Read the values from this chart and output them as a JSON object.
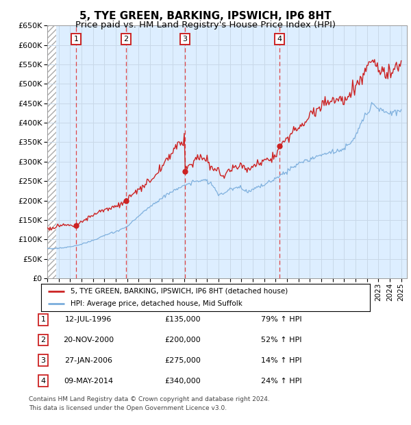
{
  "title": "5, TYE GREEN, BARKING, IPSWICH, IP6 8HT",
  "subtitle": "Price paid vs. HM Land Registry's House Price Index (HPI)",
  "legend_line1": "5, TYE GREEN, BARKING, IPSWICH, IP6 8HT (detached house)",
  "legend_line2": "HPI: Average price, detached house, Mid Suffolk",
  "footer1": "Contains HM Land Registry data © Crown copyright and database right 2024.",
  "footer2": "This data is licensed under the Open Government Licence v3.0.",
  "ylim": [
    0,
    650000
  ],
  "yticks": [
    0,
    50000,
    100000,
    150000,
    200000,
    250000,
    300000,
    350000,
    400000,
    450000,
    500000,
    550000,
    600000,
    650000
  ],
  "ytick_labels": [
    "£0",
    "£50K",
    "£100K",
    "£150K",
    "£200K",
    "£250K",
    "£300K",
    "£350K",
    "£400K",
    "£450K",
    "£500K",
    "£550K",
    "£600K",
    "£650K"
  ],
  "xlim_start": 1994.0,
  "xlim_end": 2025.5,
  "purchases": [
    {
      "num": 1,
      "date_decimal": 1996.53,
      "price": 135000,
      "date_str": "12-JUL-1996",
      "price_str": "£135,000",
      "pct_str": "79% ↑ HPI"
    },
    {
      "num": 2,
      "date_decimal": 2000.89,
      "price": 200000,
      "date_str": "20-NOV-2000",
      "price_str": "£200,000",
      "pct_str": "52% ↑ HPI"
    },
    {
      "num": 3,
      "date_decimal": 2006.07,
      "price": 275000,
      "date_str": "27-JAN-2006",
      "price_str": "£275,000",
      "pct_str": "14% ↑ HPI"
    },
    {
      "num": 4,
      "date_decimal": 2014.35,
      "price": 340000,
      "date_str": "09-MAY-2014",
      "price_str": "£340,000",
      "pct_str": "24% ↑ HPI"
    }
  ],
  "hpi_color": "#7aaddc",
  "price_color": "#cc2222",
  "vline_color": "#dd3333",
  "grid_color": "#c8d8e8",
  "bg_color": "#ddeeff",
  "hatch_color": "#aaaaaa",
  "box_color": "#cc2222",
  "title_fontsize": 11,
  "subtitle_fontsize": 9.5,
  "axis_fontsize": 8,
  "label_fontsize": 8
}
